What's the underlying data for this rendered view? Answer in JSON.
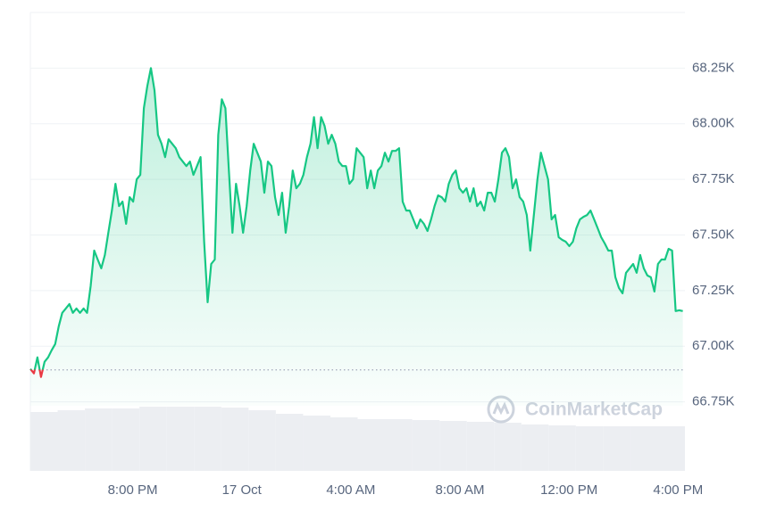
{
  "chart_data": {
    "type": "line",
    "watermark": "CoinMarketCap",
    "xlim": [
      16.25,
      40.25
    ],
    "xticks": [
      {
        "value": 20,
        "label": "8:00 PM"
      },
      {
        "value": 24,
        "label": "17 Oct"
      },
      {
        "value": 28,
        "label": "4:00 AM"
      },
      {
        "value": 32,
        "label": "8:00 AM"
      },
      {
        "value": 36,
        "label": "12:00 PM"
      },
      {
        "value": 40,
        "label": "4:00 PM"
      }
    ],
    "ylim": [
      66440,
      68500
    ],
    "yticks": [
      {
        "value": 66750,
        "label": "66.75K"
      },
      {
        "value": 67000,
        "label": "67.00K"
      },
      {
        "value": 67250,
        "label": "67.25K"
      },
      {
        "value": 67500,
        "label": "67.50K"
      },
      {
        "value": 67750,
        "label": "67.75K"
      },
      {
        "value": 68000,
        "label": "68.00K"
      },
      {
        "value": 68250,
        "label": "68.25K"
      }
    ],
    "grid": true,
    "baseline": 66894,
    "up_color": "#16c784",
    "down_color": "#ea3943",
    "x": [
      16.25,
      16.38,
      16.51,
      16.64,
      16.77,
      16.9,
      17.03,
      17.16,
      17.29,
      17.42,
      17.55,
      17.68,
      17.81,
      17.94,
      18.07,
      18.2,
      18.33,
      18.46,
      18.59,
      18.72,
      18.85,
      18.98,
      19.11,
      19.24,
      19.37,
      19.5,
      19.63,
      19.76,
      19.89,
      20.02,
      20.15,
      20.28,
      20.41,
      20.54,
      20.67,
      20.8,
      20.93,
      21.06,
      21.19,
      21.32,
      21.45,
      21.58,
      21.71,
      21.84,
      21.97,
      22.1,
      22.23,
      22.36,
      22.49,
      22.62,
      22.75,
      22.88,
      23.01,
      23.14,
      23.27,
      23.4,
      23.53,
      23.66,
      23.79,
      23.92,
      24.05,
      24.18,
      24.31,
      24.44,
      24.57,
      24.7,
      24.83,
      24.96,
      25.09,
      25.22,
      25.35,
      25.48,
      25.61,
      25.74,
      25.87,
      26,
      26.13,
      26.26,
      26.39,
      26.52,
      26.65,
      26.78,
      26.91,
      27.04,
      27.17,
      27.3,
      27.43,
      27.56,
      27.69,
      27.82,
      27.95,
      28.08,
      28.21,
      28.34,
      28.47,
      28.6,
      28.73,
      28.86,
      28.99,
      29.12,
      29.25,
      29.38,
      29.51,
      29.64,
      29.77,
      29.9,
      30.03,
      30.16,
      30.29,
      30.42,
      30.55,
      30.68,
      30.81,
      30.94,
      31.07,
      31.2,
      31.33,
      31.46,
      31.59,
      31.72,
      31.85,
      31.98,
      32.11,
      32.24,
      32.37,
      32.5,
      32.63,
      32.76,
      32.89,
      33.02,
      33.15,
      33.28,
      33.41,
      33.54,
      33.67,
      33.8,
      33.93,
      34.06,
      34.19,
      34.32,
      34.45,
      34.58,
      34.71,
      34.84,
      34.97,
      35.1,
      35.23,
      35.36,
      35.49,
      35.62,
      35.75,
      35.88,
      36.01,
      36.14,
      36.27,
      36.4,
      36.53,
      36.66,
      36.79,
      36.92,
      37.05,
      37.18,
      37.31,
      37.44,
      37.57,
      37.7,
      37.83,
      37.96,
      38.09,
      38.22,
      38.35,
      38.48,
      38.61,
      38.74,
      38.87,
      39,
      39.13,
      39.26,
      39.39,
      39.52,
      39.65,
      39.78,
      39.91,
      40.04,
      40.17
    ],
    "values": [
      66898,
      66878,
      66950,
      66862,
      66930,
      66950,
      66982,
      67010,
      67090,
      67150,
      67170,
      67190,
      67150,
      67170,
      67150,
      67170,
      67150,
      67270,
      67430,
      67390,
      67350,
      67410,
      67510,
      67610,
      67730,
      67630,
      67650,
      67550,
      67670,
      67650,
      67750,
      67770,
      68070,
      68170,
      68250,
      68150,
      67950,
      67910,
      67850,
      67930,
      67910,
      67890,
      67850,
      67830,
      67810,
      67830,
      67770,
      67810,
      67850,
      67470,
      67198,
      67370,
      67390,
      67950,
      68110,
      68070,
      67790,
      67510,
      67730,
      67630,
      67510,
      67630,
      67790,
      67910,
      67870,
      67830,
      67690,
      67830,
      67810,
      67670,
      67590,
      67690,
      67510,
      67630,
      67790,
      67710,
      67730,
      67770,
      67850,
      67910,
      68030,
      67890,
      68030,
      67990,
      67910,
      67950,
      67910,
      67830,
      67810,
      67810,
      67730,
      67750,
      67890,
      67870,
      67850,
      67710,
      67790,
      67710,
      67790,
      67810,
      67870,
      67830,
      67878,
      67878,
      67890,
      67650,
      67610,
      67610,
      67570,
      67530,
      67570,
      67550,
      67518,
      67570,
      67630,
      67678,
      67670,
      67650,
      67730,
      67770,
      67790,
      67710,
      67690,
      67710,
      67650,
      67710,
      67630,
      67650,
      67610,
      67690,
      67690,
      67650,
      67750,
      67870,
      67890,
      67850,
      67710,
      67750,
      67670,
      67650,
      67590,
      67430,
      67590,
      67750,
      67870,
      67810,
      67750,
      67570,
      67590,
      67490,
      67478,
      67470,
      67450,
      67470,
      67530,
      67570,
      67582,
      67590,
      67610,
      67570,
      67530,
      67490,
      67462,
      67430,
      67430,
      67310,
      67262,
      67238,
      67330,
      67350,
      67370,
      67330,
      67410,
      67350,
      67318,
      67310,
      67246,
      67370,
      67390,
      67390,
      67438,
      67430,
      67158,
      67162,
      67158
    ],
    "volume": {
      "color": "#eceef2",
      "vlim": [
        0,
        100
      ],
      "x": [
        16.75,
        17.75,
        18.75,
        19.75,
        20.75,
        21.75,
        22.75,
        23.75,
        24.75,
        25.75,
        26.75,
        27.75,
        28.75,
        29.75,
        30.75,
        31.75,
        32.75,
        33.75,
        34.75,
        35.75,
        36.75,
        37.75,
        38.75,
        39.75
      ],
      "values": [
        66,
        68,
        70,
        70,
        72,
        72,
        72,
        71,
        68,
        64,
        62,
        60,
        58,
        58,
        57,
        56,
        55,
        54,
        52,
        51,
        50,
        50,
        50,
        50
      ]
    }
  }
}
